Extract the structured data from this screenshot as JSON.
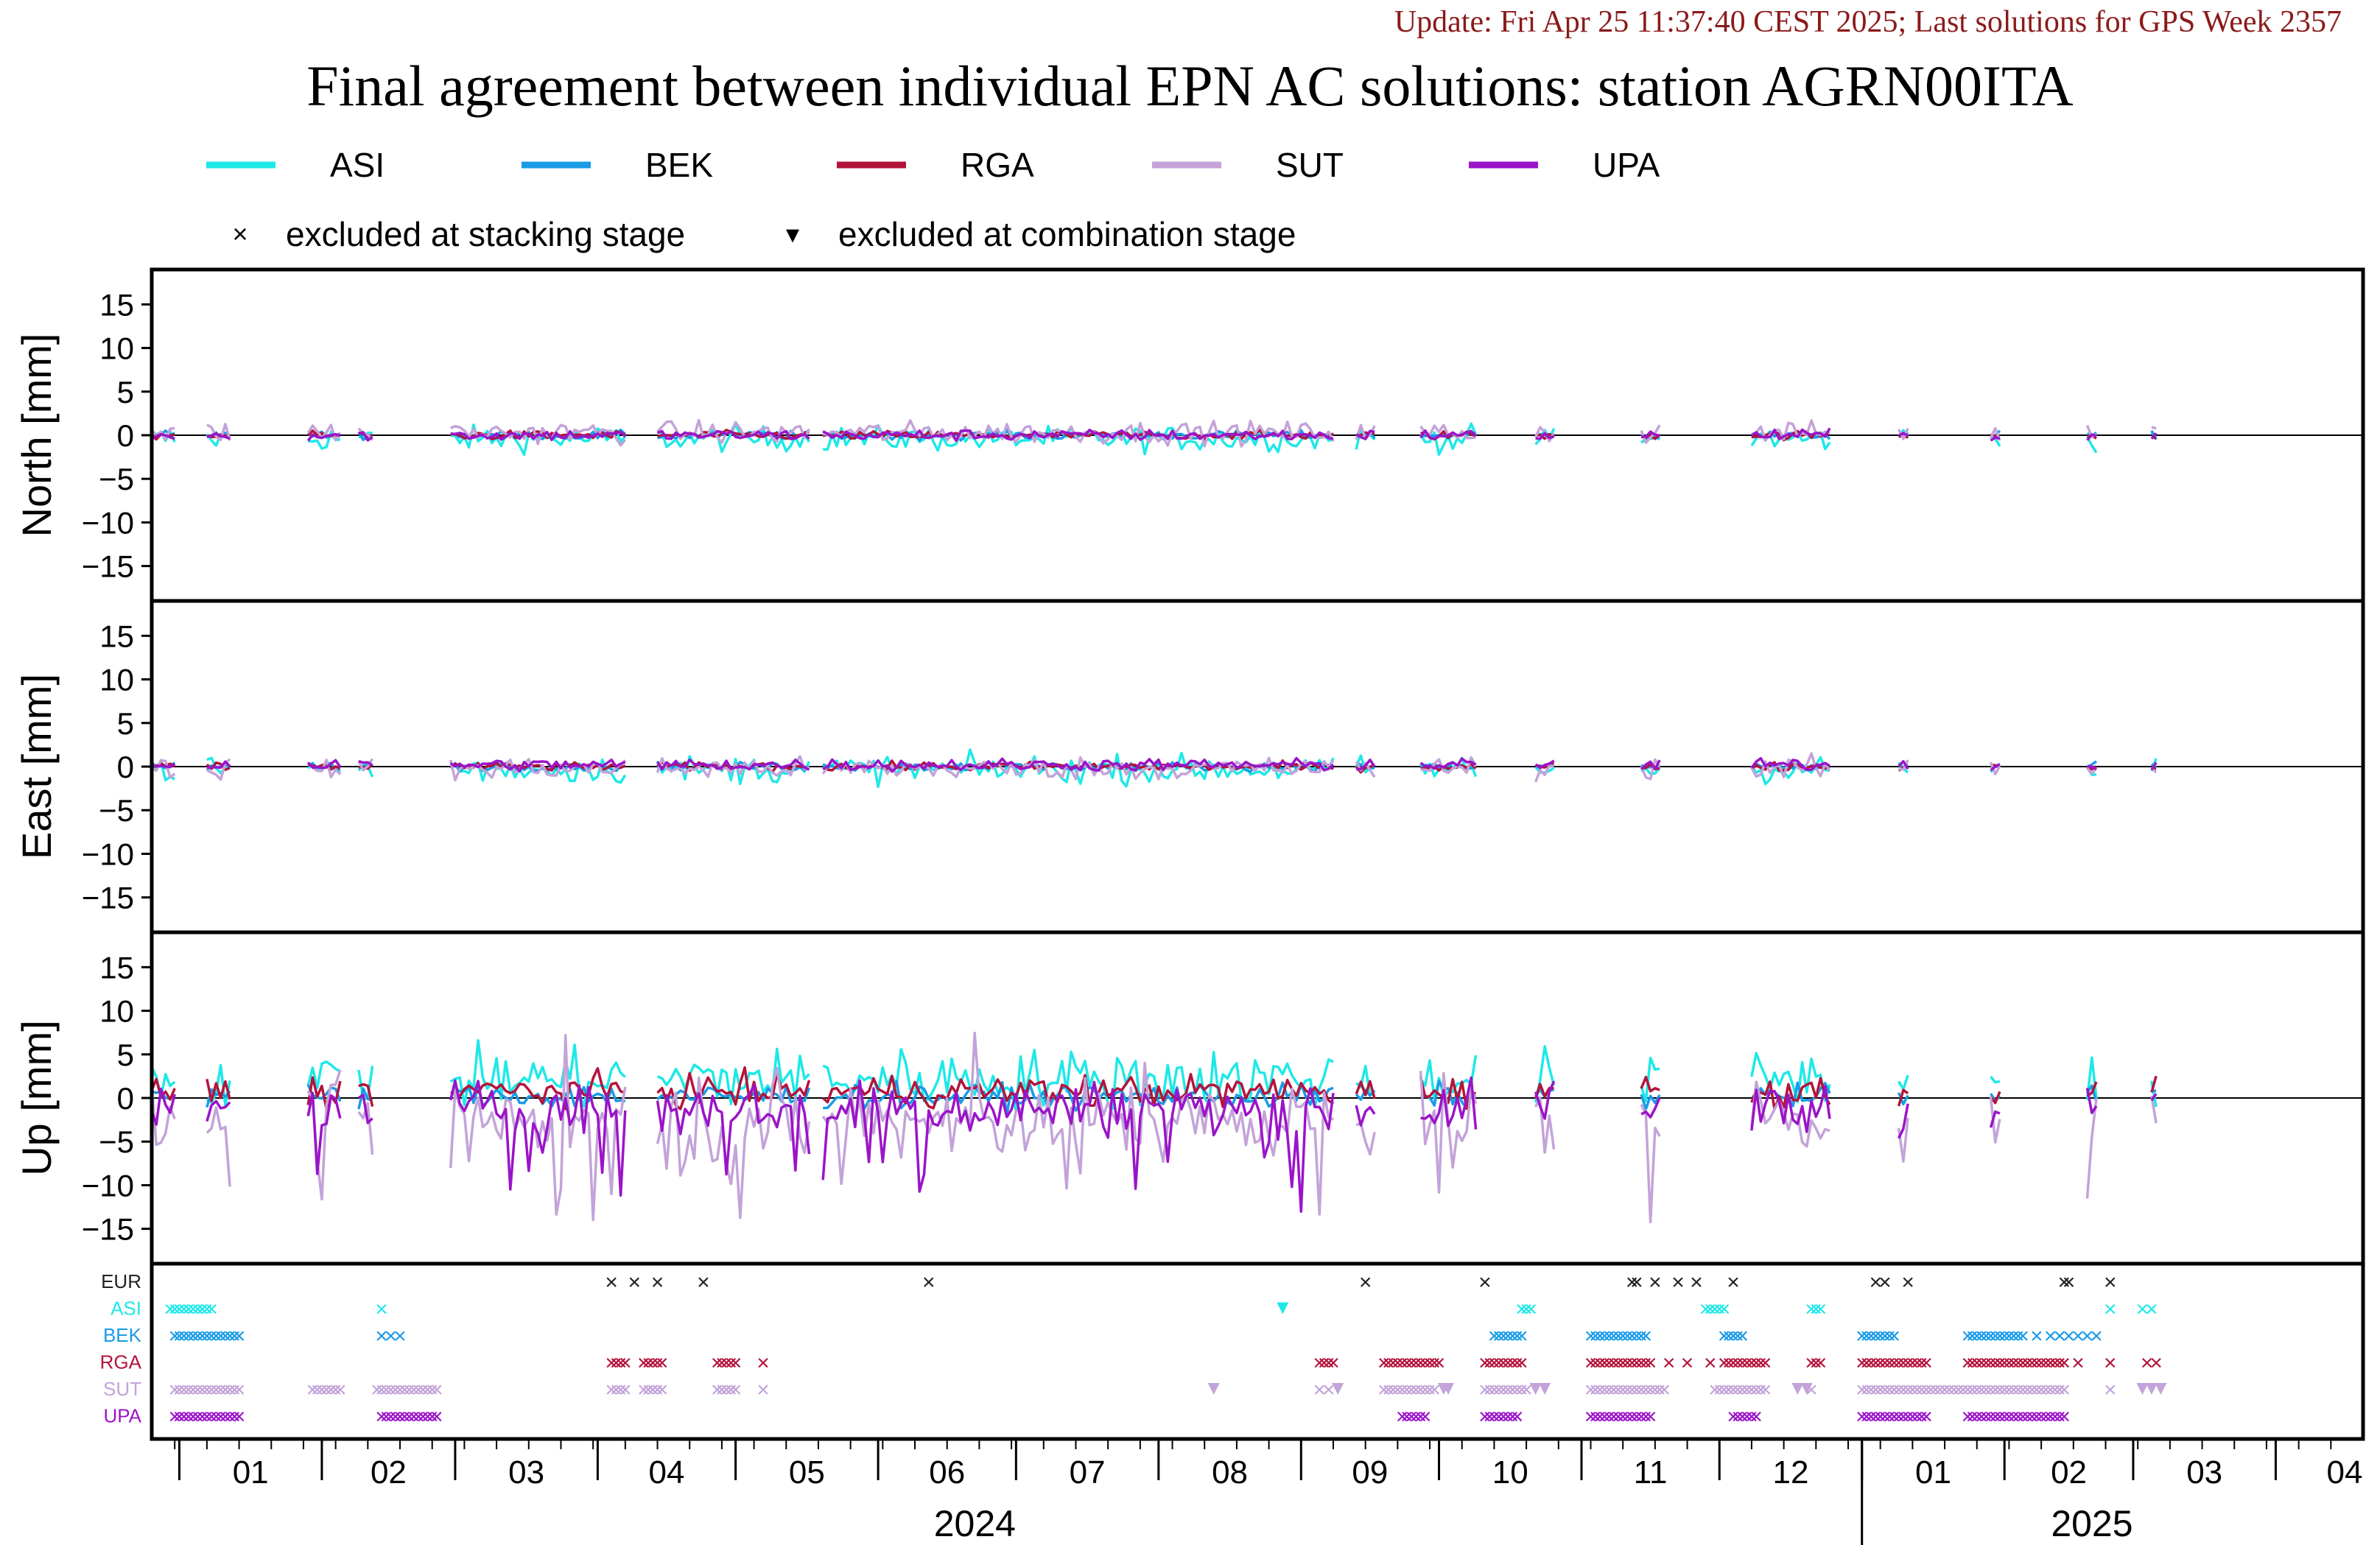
{
  "header": {
    "update_text": "Update: Fri Apr 25 11:37:40 CEST 2025; Last solutions for GPS Week 2357",
    "title": "Final agreement between individual EPN AC solutions: station AGRN00ITA"
  },
  "legend": {
    "series": [
      {
        "name": "ASI",
        "color": "#1fe8e8"
      },
      {
        "name": "BEK",
        "color": "#1a9be6"
      },
      {
        "name": "RGA",
        "color": "#b3143c"
      },
      {
        "name": "SUT",
        "color": "#c3a3d9"
      },
      {
        "name": "UPA",
        "color": "#9b14c8"
      }
    ],
    "markers": [
      {
        "symbol": "×",
        "label": "excluded at stacking stage"
      },
      {
        "symbol": "▾",
        "label": "excluded at combination stage"
      }
    ]
  },
  "chart_data": {
    "type": "line",
    "x_range": [
      "2023-12-26",
      "2025-04-20"
    ],
    "gaps": [
      [
        "2024-01-01",
        "2024-01-06"
      ],
      [
        "2024-01-13",
        "2024-01-28"
      ],
      [
        "2024-02-06",
        "2024-02-08"
      ],
      [
        "2024-02-13",
        "2024-02-28"
      ],
      [
        "2024-04-08",
        "2024-04-13"
      ],
      [
        "2024-05-18",
        "2024-05-19"
      ],
      [
        "2024-09-09",
        "2024-09-12"
      ],
      [
        "2024-09-18",
        "2024-09-26"
      ],
      [
        "2024-10-10",
        "2024-10-21"
      ],
      [
        "2024-10-27",
        "2024-11-13"
      ],
      [
        "2024-11-19",
        "2024-12-07"
      ],
      [
        "2024-12-26",
        "2025-01-08"
      ],
      [
        "2025-01-12",
        "2025-01-28"
      ],
      [
        "2025-02-01",
        "2025-02-18"
      ],
      [
        "2025-02-22",
        "2025-03-04"
      ]
    ],
    "data_range": [
      "2023-12-26",
      "2025-03-06"
    ],
    "panels": [
      {
        "ylabel": "North [mm]",
        "ylim": [
          -19,
          19
        ],
        "yticks": [
          15,
          10,
          5,
          0,
          -5,
          -10,
          -15
        ],
        "spread": {
          "ASI": 1.0,
          "BEK": 0.35,
          "RGA": 0.35,
          "SUT": 0.9,
          "UPA": 0.45
        },
        "bias": {
          "ASI": -0.4,
          "BEK": 0,
          "RGA": 0,
          "SUT": 0.3,
          "UPA": 0
        }
      },
      {
        "ylabel": "East [mm]",
        "ylim": [
          -19,
          19
        ],
        "yticks": [
          15,
          10,
          5,
          0,
          -5,
          -10,
          -15
        ],
        "spread": {
          "ASI": 1.1,
          "BEK": 0.35,
          "RGA": 0.35,
          "SUT": 0.9,
          "UPA": 0.5
        },
        "bias": {
          "ASI": -0.3,
          "BEK": 0,
          "RGA": 0,
          "SUT": -0.2,
          "UPA": 0.2
        }
      },
      {
        "ylabel": "Up [mm]",
        "ylim": [
          -19,
          19
        ],
        "yticks": [
          15,
          10,
          5,
          0,
          -5,
          -10,
          -15
        ],
        "spread": {
          "ASI": 2.4,
          "BEK": 1.0,
          "RGA": 1.3,
          "SUT": 3.2,
          "UPA": 2.2
        },
        "bias": {
          "ASI": 2.2,
          "BEK": 0.2,
          "RGA": 0.8,
          "SUT": -2.5,
          "UPA": -1.2
        }
      }
    ],
    "exclusion_rows": [
      {
        "name": "EUR",
        "color": "#222222",
        "x_marks": [
          "2024-04-04",
          "2024-04-09",
          "2024-04-14",
          "2024-04-24",
          "2024-06-12",
          "2024-09-15",
          "2024-10-11",
          "2024-11-12",
          "2024-11-13",
          "2024-11-17",
          "2024-11-22",
          "2024-11-26",
          "2024-12-04",
          "2025-01-04",
          "2025-01-06",
          "2025-01-11",
          "2025-02-14",
          "2025-02-15",
          "2025-02-24"
        ],
        "tri_marks": []
      },
      {
        "name": "ASI",
        "color": "#1fe8e8",
        "x_ranges": [
          [
            "2023-12-30",
            "2024-01-08"
          ],
          [
            "2024-10-19",
            "2024-10-21"
          ],
          [
            "2024-11-28",
            "2024-12-02"
          ],
          [
            "2024-12-21",
            "2024-12-23"
          ]
        ],
        "x_marks": [
          "2024-02-14",
          "2025-02-24",
          "2025-03-03",
          "2025-03-05"
        ],
        "tri_marks": [
          "2024-08-28"
        ]
      },
      {
        "name": "BEK",
        "color": "#1a9be6",
        "x_ranges": [
          [
            "2023-12-31",
            "2024-01-14"
          ],
          [
            "2024-10-13",
            "2024-10-19"
          ],
          [
            "2024-11-03",
            "2024-11-15"
          ],
          [
            "2024-12-02",
            "2024-12-06"
          ],
          [
            "2025-01-01",
            "2025-01-08"
          ],
          [
            "2025-01-24",
            "2025-02-05"
          ]
        ],
        "x_marks": [
          "2024-02-14",
          "2024-02-16",
          "2024-02-18",
          "2025-02-08",
          "2025-02-11",
          "2025-02-13",
          "2025-02-15",
          "2025-02-17",
          "2025-02-19",
          "2025-02-21"
        ],
        "tri_marks": []
      },
      {
        "name": "RGA",
        "color": "#b3143c",
        "x_ranges": [
          [
            "2024-04-04",
            "2024-04-07"
          ],
          [
            "2024-04-11",
            "2024-04-15"
          ],
          [
            "2024-04-27",
            "2024-05-01"
          ],
          [
            "2024-09-05",
            "2024-09-08"
          ],
          [
            "2024-09-19",
            "2024-09-24"
          ],
          [
            "2024-09-25",
            "2024-10-01"
          ],
          [
            "2024-10-11",
            "2024-10-19"
          ],
          [
            "2024-11-03",
            "2024-11-16"
          ],
          [
            "2024-12-02",
            "2024-12-11"
          ],
          [
            "2024-12-21",
            "2024-12-23"
          ],
          [
            "2025-01-01",
            "2025-01-15"
          ],
          [
            "2025-01-24",
            "2025-02-14"
          ]
        ],
        "x_marks": [
          "2024-05-07",
          "2024-11-20",
          "2024-11-24",
          "2024-11-29",
          "2025-02-17",
          "2025-02-24",
          "2025-03-04",
          "2025-03-06"
        ],
        "tri_marks": []
      },
      {
        "name": "SUT",
        "color": "#c3a3d9",
        "x_ranges": [
          [
            "2023-12-31",
            "2024-01-14"
          ],
          [
            "2024-01-30",
            "2024-02-05"
          ],
          [
            "2024-02-13",
            "2024-02-26"
          ],
          [
            "2024-04-04",
            "2024-04-07"
          ],
          [
            "2024-04-11",
            "2024-04-15"
          ],
          [
            "2024-04-27",
            "2024-05-01"
          ],
          [
            "2024-09-19",
            "2024-09-30"
          ],
          [
            "2024-10-11",
            "2024-10-20"
          ],
          [
            "2024-11-03",
            "2024-11-19"
          ],
          [
            "2024-11-30",
            "2024-12-11"
          ],
          [
            "2025-01-01",
            "2025-01-24"
          ],
          [
            "2025-01-24",
            "2025-02-14"
          ]
        ],
        "x_marks": [
          "2024-05-07",
          "2024-09-05",
          "2024-09-07",
          "2024-12-21",
          "2025-02-24"
        ],
        "tri_marks": [
          "2024-08-13",
          "2024-09-09",
          "2024-10-02",
          "2024-10-03",
          "2024-10-22",
          "2024-10-24",
          "2024-12-18",
          "2024-12-20",
          "2025-03-03",
          "2025-03-05",
          "2025-03-07"
        ]
      },
      {
        "name": "UPA",
        "color": "#9b14c8",
        "x_ranges": [
          [
            "2023-12-31",
            "2024-01-14"
          ],
          [
            "2024-02-14",
            "2024-02-26"
          ],
          [
            "2024-09-23",
            "2024-09-28"
          ],
          [
            "2024-10-11",
            "2024-10-18"
          ],
          [
            "2024-11-03",
            "2024-11-16"
          ],
          [
            "2024-12-04",
            "2024-12-09"
          ],
          [
            "2025-01-01",
            "2025-01-15"
          ],
          [
            "2025-01-24",
            "2025-02-14"
          ]
        ],
        "x_marks": [],
        "tri_marks": []
      }
    ],
    "x_month_labels": [
      "01",
      "02",
      "03",
      "04",
      "05",
      "06",
      "07",
      "08",
      "09",
      "10",
      "11",
      "12",
      "01",
      "02",
      "03",
      "04"
    ],
    "x_year_labels": [
      {
        "year": "2024",
        "month": "2024-07-01"
      },
      {
        "year": "2025",
        "month": "2025-03-01"
      }
    ]
  }
}
